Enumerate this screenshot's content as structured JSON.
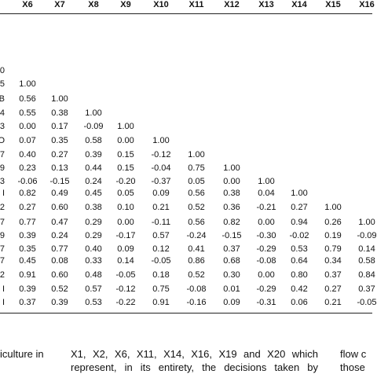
{
  "header": {
    "columns": [
      "X6",
      "X7",
      "X8",
      "X9",
      "X10",
      "X11",
      "X12",
      "X13",
      "X14",
      "X15",
      "X16"
    ]
  },
  "table": {
    "rows": [
      {
        "label": "0",
        "cells": []
      },
      {
        "label": "5",
        "cells": [
          "1.00"
        ]
      },
      {
        "label": "B",
        "cells": [
          "0.56",
          "1.00"
        ]
      },
      {
        "label": "4",
        "cells": [
          "0.55",
          "0.38",
          "1.00"
        ]
      },
      {
        "label": "3",
        "cells": [
          "0.00",
          "0.17",
          "-0.09",
          "1.00"
        ]
      },
      {
        "label": "O",
        "cells": [
          "0.07",
          "0.35",
          "0.58",
          "0.00",
          "1.00"
        ]
      },
      {
        "label": "7",
        "cells": [
          "0.40",
          "0.27",
          "0.39",
          "0.15",
          "-0.12",
          "1.00"
        ]
      },
      {
        "label": "9",
        "cells": [
          "0.23",
          "0.13",
          "0.44",
          "0.15",
          "-0.04",
          "0.75",
          "1.00"
        ]
      },
      {
        "label": "3",
        "cells": [
          "-0.06",
          "-0.15",
          "0.24",
          "-0.20",
          "-0.37",
          "0.05",
          "0.00",
          "1.00"
        ]
      },
      {
        "label": "I",
        "cells": [
          "0.82",
          "0.49",
          "0.45",
          "0.05",
          "0.09",
          "0.56",
          "0.38",
          "0.04",
          "1.00"
        ]
      },
      {
        "label": "2",
        "cells": [
          "0.27",
          "0.60",
          "0.38",
          "0.10",
          "0.21",
          "0.52",
          "0.36",
          "-0.21",
          "0.27",
          "1.00"
        ]
      },
      {
        "label": "7",
        "cells": [
          "0.77",
          "0.47",
          "0.29",
          "0.00",
          "-0.11",
          "0.56",
          "0.82",
          "0.00",
          "0.94",
          "0.26",
          "1.00"
        ]
      },
      {
        "label": "9",
        "cells": [
          "0.39",
          "0.24",
          "0.29",
          "-0.17",
          "0.57",
          "-0.24",
          "-0.15",
          "-0.30",
          "-0.02",
          "0.19",
          "-0.09"
        ]
      },
      {
        "label": "7",
        "cells": [
          "0.35",
          "0.77",
          "0.40",
          "0.09",
          "0.12",
          "0.41",
          "0.37",
          "-0.29",
          "0.53",
          "0.79",
          "0.14"
        ]
      },
      {
        "label": "7",
        "cells": [
          "0.45",
          "0.08",
          "0.33",
          "0.14",
          "-0.05",
          "0.86",
          "0.68",
          "-0.08",
          "0.64",
          "0.34",
          "0.58"
        ]
      },
      {
        "label": "2",
        "cells": [
          "0.91",
          "0.60",
          "0.48",
          "-0.05",
          "0.18",
          "0.52",
          "0.30",
          "0.00",
          "0.80",
          "0.37",
          "0.84"
        ]
      },
      {
        "label": "I",
        "cells": [
          "0.39",
          "0.52",
          "0.57",
          "-0.12",
          "0.75",
          "-0.08",
          "0.01",
          "-0.29",
          "0.42",
          "0.27",
          "0.37"
        ]
      },
      {
        "label": "I",
        "cells": [
          "0.37",
          "0.39",
          "0.53",
          "-0.22",
          "0.91",
          "-0.16",
          "0.09",
          "-0.31",
          "0.06",
          "0.21",
          "-0.05"
        ]
      }
    ]
  },
  "text": {
    "left": [
      "iculture in"
    ],
    "middle": [
      "X1, X2, X6, X11, X14, X16, X19 and X20 which",
      "represent, in its entirety, the decisions taken by"
    ],
    "right": [
      "flow c",
      "those"
    ]
  }
}
